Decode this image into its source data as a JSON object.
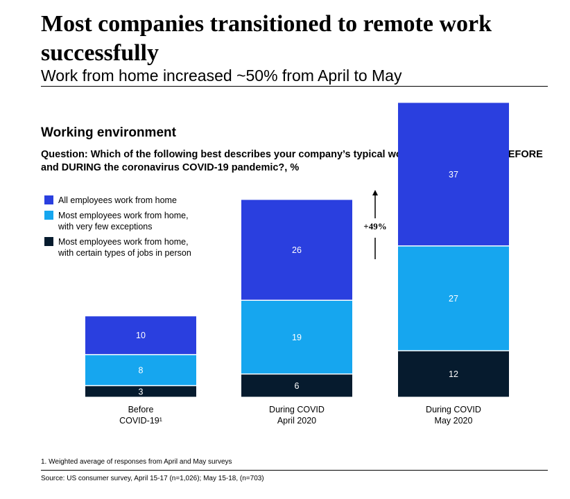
{
  "header": {
    "title": "Most companies transitioned to remote work successfully",
    "subtitle": "Work from home increased ~50% from April to May"
  },
  "section": {
    "heading": "Working environment",
    "question": "Question: Which of the following best describes your company’s typical work from home policy BEFORE and DURING the coronavirus COVID-19 pandemic?, %"
  },
  "legend": [
    {
      "label": "All employees work from home",
      "color": "#2a3fdf"
    },
    {
      "label": "Most employees work from home,\nwith very few exceptions",
      "color": "#16a6ef"
    },
    {
      "label": "Most employees work from home,\nwith certain types of jobs in person",
      "color": "#061b2e"
    }
  ],
  "chart_data": {
    "type": "bar",
    "stacked": true,
    "categories": [
      [
        "Before",
        "COVID-19¹"
      ],
      [
        "During COVID",
        "April 2020"
      ],
      [
        "During COVID",
        "May 2020"
      ]
    ],
    "series": [
      {
        "name": "Most employees work from home, with certain types of jobs in person",
        "values": [
          3,
          6,
          12
        ],
        "color": "#061b2e"
      },
      {
        "name": "Most employees work from home, with very few exceptions",
        "values": [
          8,
          19,
          27
        ],
        "color": "#16a6ef"
      },
      {
        "name": "All employees work from home",
        "values": [
          10,
          26,
          37
        ],
        "color": "#2a3fdf"
      }
    ],
    "annotation": "+49%",
    "legend_position": "top-left",
    "grid": false
  },
  "footer": {
    "footnote": "1.   Weighted average of responses from April and May surveys",
    "source": "Source: US consumer survey, April 15-17 (n=1,026); May 15-18, (n=703)"
  }
}
